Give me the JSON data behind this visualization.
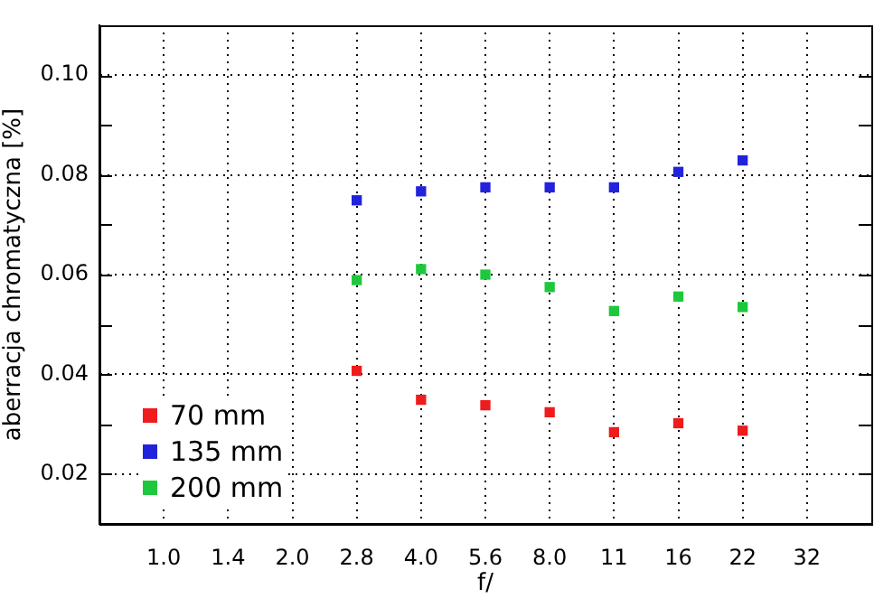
{
  "chart_data": {
    "type": "scatter",
    "xlabel": "f/",
    "ylabel": "aberracja chromatyczna [%]",
    "categories": [
      null,
      "1.0",
      "1.4",
      "2.0",
      "2.8",
      "4.0",
      "5.6",
      "8.0",
      "11",
      "16",
      "22",
      "32",
      null
    ],
    "series": [
      {
        "name": "70 mm",
        "color": "#ee1c1c",
        "values": [
          null,
          null,
          null,
          null,
          0.0407,
          0.0349,
          0.0338,
          0.0324,
          0.0284,
          0.0302,
          0.0287,
          null,
          null
        ]
      },
      {
        "name": "135 mm",
        "color": "#2222dd",
        "values": [
          null,
          null,
          null,
          null,
          0.0749,
          0.0767,
          0.0775,
          0.0775,
          0.0775,
          0.0806,
          0.0829,
          null,
          null
        ]
      },
      {
        "name": "200 mm",
        "color": "#1ec83c",
        "values": [
          null,
          null,
          null,
          null,
          0.0589,
          0.0611,
          0.06,
          0.0575,
          0.0527,
          0.0556,
          0.0535,
          null,
          null
        ]
      }
    ],
    "ylim": [
      0.01,
      0.11
    ],
    "yticks": [
      {
        "value": 0.01,
        "label": null
      },
      0.02,
      {
        "value": 0.03,
        "label": null
      },
      0.04,
      {
        "value": 0.05,
        "label": null
      },
      0.06,
      {
        "value": 0.07,
        "label": null
      },
      0.08,
      {
        "value": 0.09,
        "label": null
      },
      {
        "value": 0.1,
        "label": "0.10"
      },
      {
        "value": 0.11,
        "label": null
      }
    ],
    "marker": "square",
    "grid": true,
    "legend": "bottom left"
  }
}
